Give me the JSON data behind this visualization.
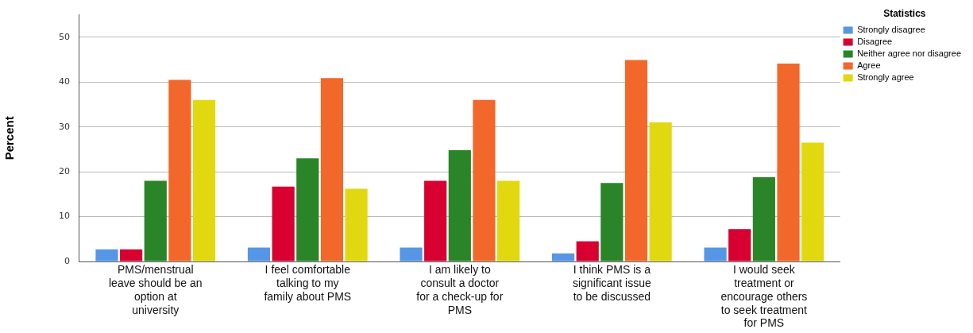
{
  "chart_data": {
    "type": "bar",
    "ylabel": "Percent",
    "legend_title": "Statistics",
    "categories": [
      "PMS/menstrual leave should be an option at university",
      "I feel comfortable talking to my family about PMS",
      "I am likely to consult a doctor for a check-up for PMS",
      "I think PMS is a significant issue to be discussed",
      "I would seek treatment or encourage others to seek treatment for PMS"
    ],
    "series": [
      {
        "name": "Strongly disagree",
        "color": "#5596e6",
        "values": [
          2.7,
          3.1,
          3.1,
          1.8,
          3.1
        ]
      },
      {
        "name": "Disagree",
        "color": "#d70030",
        "values": [
          2.7,
          16.7,
          18.0,
          4.5,
          7.2
        ]
      },
      {
        "name": "Neither agree nor disagree",
        "color": "#2a8528",
        "values": [
          18.0,
          23.0,
          24.8,
          17.5,
          18.8
        ]
      },
      {
        "name": "Agree",
        "color": "#f2682a",
        "values": [
          40.5,
          40.9,
          36.0,
          44.9,
          44.1
        ]
      },
      {
        "name": "Strongly agree",
        "color": "#e2d810",
        "values": [
          36.0,
          16.2,
          18.0,
          31.0,
          26.5
        ]
      }
    ],
    "ylim": [
      0,
      55
    ],
    "yticks": [
      0,
      10,
      20,
      30,
      40,
      50
    ],
    "grid": "y",
    "legend": "top right"
  }
}
